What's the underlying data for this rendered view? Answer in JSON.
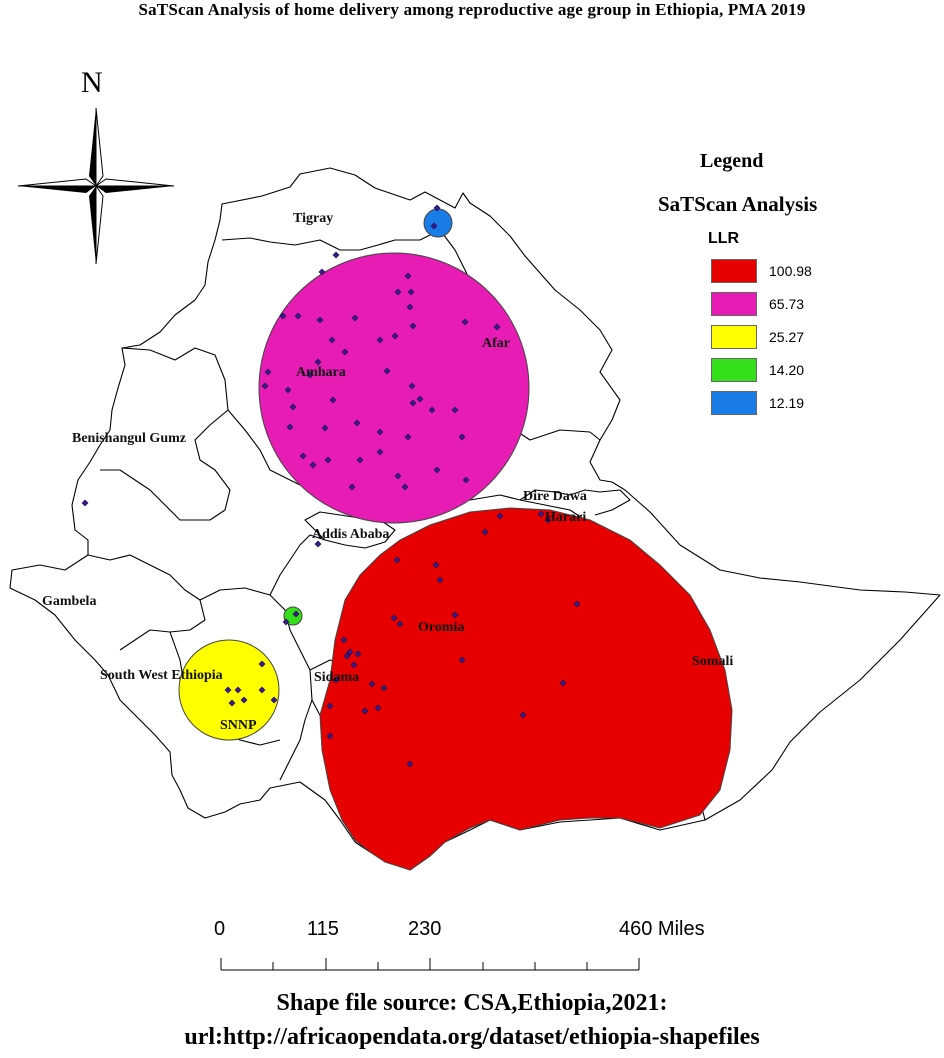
{
  "title": "SaTScan Analysis of home delivery among reproductive age group in Ethiopia, PMA 2019",
  "north_label": "N",
  "legend": {
    "title": "Legend",
    "subtitle": "SaTScan Analysis",
    "field": "LLR",
    "items": [
      {
        "label": "100.98",
        "color": "#e60000"
      },
      {
        "label": "65.73",
        "color": "#e61cb4"
      },
      {
        "label": "25.27",
        "color": "#ffff00"
      },
      {
        "label": "14.20",
        "color": "#33e01a"
      },
      {
        "label": "12.19",
        "color": "#1a7ce6"
      }
    ]
  },
  "regions": {
    "tigray": "Tigray",
    "afar": "Afar",
    "amhara": "Amhara",
    "benishangul": "Benishangul Gumz",
    "dire_dawa": "Dire Dawa",
    "harari": "Harari",
    "addis_ababa": "Addis Ababa",
    "gambela": "Gambela",
    "oromia": "Oromia",
    "somali": "Somali",
    "south_west": "South West Ethiopia",
    "sidama": "Sidama",
    "snnp": "SNNP"
  },
  "clusters": [
    {
      "llr": "100.98",
      "color": "#e60000"
    },
    {
      "llr": "65.73",
      "color": "#e61cb4"
    },
    {
      "llr": "25.27",
      "color": "#ffff00"
    },
    {
      "llr": "14.20",
      "color": "#33e01a"
    },
    {
      "llr": "12.19",
      "color": "#1a7ce6"
    }
  ],
  "scale_bar": {
    "ticks": [
      "0",
      "115",
      "230",
      "460 Miles"
    ]
  },
  "source_line1": "Shape file source: CSA,Ethiopia,2021:",
  "source_line2": "url:http://africaopendata.org/dataset/ethiopia-shapefiles",
  "colors": {
    "boundary": "#000000",
    "point_fill": "#3a1a8c",
    "point_stroke": "#1a0a4a"
  }
}
